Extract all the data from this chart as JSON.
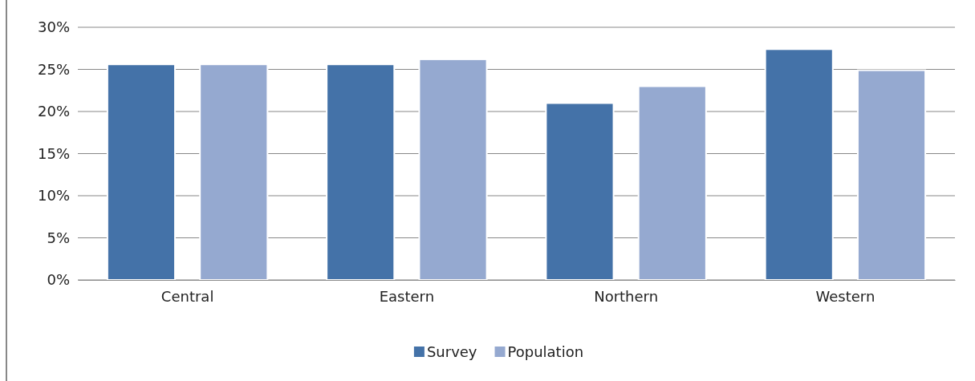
{
  "chart_data": {
    "type": "bar",
    "categories": [
      "Central",
      "Eastern",
      "Northern",
      "Western"
    ],
    "series": [
      {
        "name": "Survey",
        "color": "#4472a8",
        "values": [
          25.6,
          25.6,
          21.0,
          27.4
        ]
      },
      {
        "name": "Population",
        "color": "#95a9d0",
        "values": [
          25.6,
          26.2,
          23.0,
          24.9
        ]
      }
    ],
    "ylim": [
      0,
      30
    ],
    "yticks": [
      {
        "value": 0,
        "label": "0%"
      },
      {
        "value": 5,
        "label": "5%"
      },
      {
        "value": 10,
        "label": "10%"
      },
      {
        "value": 15,
        "label": "15%"
      },
      {
        "value": 20,
        "label": "20%"
      },
      {
        "value": 25,
        "label": "25%"
      },
      {
        "value": 30,
        "label": "30%"
      }
    ],
    "grid": "y",
    "legend": "bottom"
  }
}
